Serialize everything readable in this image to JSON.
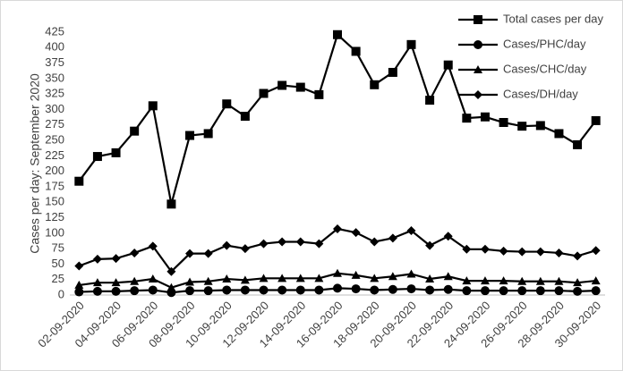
{
  "chart_data": {
    "type": "line",
    "y_label": "Cases per day: September 2020",
    "categories": [
      "02-09-2020",
      null,
      "04-09-2020",
      null,
      "06-09-2020",
      null,
      "08-09-2020",
      null,
      "10-09-2020",
      null,
      "12-09-2020",
      null,
      "14-09-2020",
      null,
      "16-09-2020",
      null,
      "18-09-2020",
      null,
      "20-09-2020",
      null,
      "22-09-2020",
      null,
      "24-09-2020",
      null,
      "26-09-2020",
      null,
      "28-09-2020",
      null,
      "30-09-2020"
    ],
    "series": [
      {
        "name": "Total cases per day",
        "color": "#000000",
        "marker": "square",
        "values": [
          184,
          224,
          230,
          265,
          306,
          147,
          258,
          261,
          309,
          289,
          326,
          339,
          336,
          324,
          421,
          394,
          340,
          360,
          405,
          315,
          372,
          286,
          288,
          279,
          273,
          274,
          261,
          243,
          282
        ]
      },
      {
        "name": "Cases/PHC/day",
        "color": "#000000",
        "marker": "circle",
        "values": [
          5,
          6,
          6,
          7,
          8,
          4,
          7,
          7,
          8,
          8,
          8,
          8,
          8,
          8,
          11,
          10,
          8,
          9,
          10,
          8,
          9,
          7,
          7,
          7,
          7,
          7,
          7,
          6,
          7
        ]
      },
      {
        "name": "Cases/CHC/day",
        "color": "#000000",
        "marker": "triangle",
        "values": [
          16,
          20,
          20,
          22,
          26,
          12,
          21,
          22,
          26,
          24,
          27,
          27,
          27,
          27,
          35,
          32,
          27,
          30,
          34,
          26,
          30,
          23,
          23,
          23,
          22,
          22,
          22,
          20,
          23
        ]
      },
      {
        "name": "Cases/DH/day",
        "color": "#000000",
        "marker": "diamond",
        "values": [
          47,
          58,
          59,
          68,
          79,
          38,
          67,
          67,
          80,
          75,
          83,
          86,
          86,
          83,
          107,
          101,
          86,
          92,
          104,
          80,
          95,
          74,
          74,
          71,
          70,
          70,
          68,
          63,
          72
        ]
      }
    ],
    "ylim": [
      0,
      425
    ],
    "yticks": [
      0,
      25,
      50,
      75,
      100,
      125,
      150,
      175,
      200,
      225,
      250,
      275,
      300,
      325,
      350,
      375,
      400,
      425
    ],
    "legend": "top-right"
  }
}
